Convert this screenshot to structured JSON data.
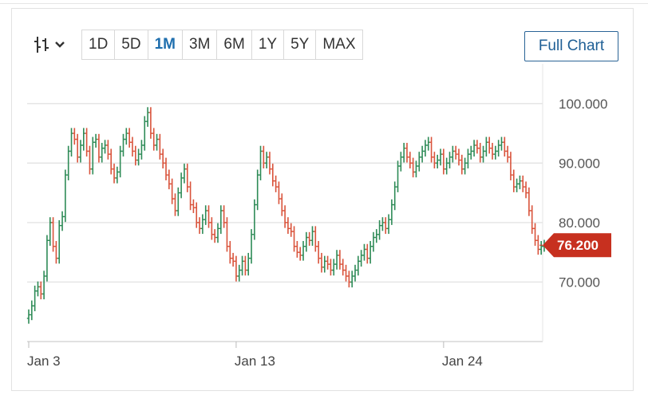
{
  "toolbar": {
    "chart_type_icon": "ohlc-bars-icon",
    "chart_type_caret": "chevron-down-icon",
    "ranges": [
      "1D",
      "5D",
      "1M",
      "3M",
      "6M",
      "1Y",
      "5Y",
      "MAX"
    ],
    "active_range": "1M",
    "full_chart_label": "Full Chart"
  },
  "colors": {
    "up": "#2e8b57",
    "down": "#d9533b",
    "last_price_badge": "#c7301f",
    "grid": "#e3e3e3"
  },
  "chart_data": {
    "type": "ohlc",
    "title": "",
    "xlabel": "",
    "ylabel": "",
    "ylim": [
      60,
      104
    ],
    "yticks": [
      100,
      90,
      80,
      70
    ],
    "y_tick_labels": [
      "100.000",
      "90.000",
      "80.000",
      "70.000"
    ],
    "x_ticks": [
      {
        "label": "Jan 3",
        "index": 0
      },
      {
        "label": "Jan 13",
        "index": 68
      },
      {
        "label": "Jan 24",
        "index": 136
      }
    ],
    "last_price": 76.2,
    "last_price_label": "76.200",
    "grid": true,
    "close": [
      64.5,
      66.0,
      68.5,
      69.2,
      68.0,
      71.0,
      77.0,
      80.0,
      76.0,
      74.0,
      79.5,
      81.0,
      88.0,
      92.0,
      95.0,
      94.0,
      91.0,
      93.0,
      95.0,
      92.0,
      89.0,
      93.5,
      94.0,
      91.0,
      92.5,
      93.0,
      91.5,
      89.0,
      87.5,
      88.5,
      92.0,
      94.0,
      95.0,
      93.5,
      92.0,
      90.5,
      91.5,
      93.0,
      97.0,
      98.5,
      95.0,
      93.0,
      94.0,
      91.5,
      90.0,
      88.0,
      86.5,
      84.0,
      82.0,
      85.0,
      87.5,
      89.0,
      86.0,
      83.0,
      82.5,
      80.0,
      79.0,
      80.5,
      82.0,
      80.0,
      78.0,
      77.5,
      79.0,
      82.0,
      80.0,
      76.0,
      74.0,
      73.5,
      71.0,
      72.0,
      73.5,
      72.0,
      74.0,
      78.0,
      83.0,
      88.0,
      92.0,
      90.0,
      91.0,
      89.0,
      87.0,
      86.0,
      84.0,
      82.0,
      80.0,
      79.0,
      78.5,
      76.0,
      75.0,
      74.5,
      76.0,
      77.5,
      77.0,
      78.5,
      76.0,
      74.0,
      72.5,
      73.5,
      73.0,
      72.0,
      73.0,
      74.5,
      73.0,
      72.0,
      71.0,
      70.0,
      71.0,
      72.0,
      73.5,
      74.5,
      75.5,
      74.0,
      76.0,
      77.5,
      78.0,
      79.5,
      80.0,
      79.0,
      80.5,
      83.0,
      86.0,
      89.5,
      91.0,
      92.5,
      91.0,
      90.0,
      88.5,
      89.5,
      91.0,
      92.0,
      93.0,
      93.5,
      91.0,
      90.0,
      90.5,
      91.5,
      89.0,
      90.0,
      91.0,
      92.0,
      91.5,
      90.5,
      89.0,
      90.0,
      91.5,
      92.0,
      93.0,
      92.5,
      91.0,
      92.0,
      93.5,
      92.5,
      91.5,
      92.0,
      93.0,
      93.5,
      92.0,
      91.0,
      88.0,
      86.0,
      86.5,
      87.0,
      86.0,
      85.0,
      82.0,
      79.0,
      77.0,
      75.5,
      76.0,
      76.2
    ]
  }
}
